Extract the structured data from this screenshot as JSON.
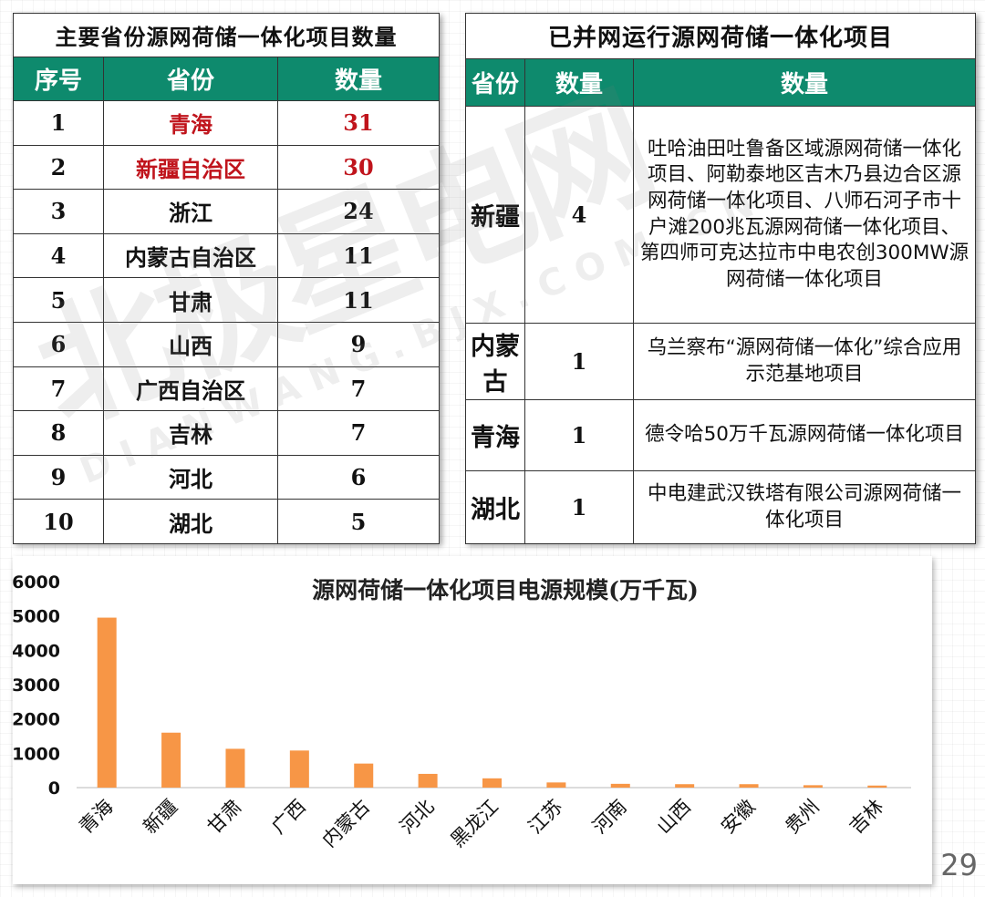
{
  "table1": {
    "title": "主要省份源网荷储一体化项目数量",
    "headers": [
      "序号",
      "省份",
      "数量"
    ],
    "rows": [
      {
        "no": "1",
        "province": "青海",
        "count": "31",
        "highlight": true
      },
      {
        "no": "2",
        "province": "新疆自治区",
        "count": "30",
        "highlight": true
      },
      {
        "no": "3",
        "province": "浙江",
        "count": "24",
        "highlight": false
      },
      {
        "no": "4",
        "province": "内蒙古自治区",
        "count": "11",
        "highlight": false
      },
      {
        "no": "5",
        "province": "甘肃",
        "count": "11",
        "highlight": false
      },
      {
        "no": "6",
        "province": "山西",
        "count": "9",
        "highlight": false
      },
      {
        "no": "7",
        "province": "广西自治区",
        "count": "7",
        "highlight": false
      },
      {
        "no": "8",
        "province": "吉林",
        "count": "7",
        "highlight": false
      },
      {
        "no": "9",
        "province": "河北",
        "count": "6",
        "highlight": false
      },
      {
        "no": "10",
        "province": "湖北",
        "count": "5",
        "highlight": false
      }
    ]
  },
  "table2": {
    "title": "已并网运行源网荷储一体化项目",
    "headers": [
      "省份",
      "数量",
      "数量"
    ],
    "rows": [
      {
        "province": "新疆",
        "count": "4",
        "desc": "吐哈油田吐鲁备区域源网荷储一体化项目、阿勒泰地区吉木乃县边合区源网荷储一体化项目、八师石河子市十户滩200兆瓦源网荷储一体化项目、第四师可克达拉市中电农创300MW源网荷储一体化项目"
      },
      {
        "province": "内蒙古",
        "count": "1",
        "desc": "乌兰察布“源网荷储一体化”综合应用示范基地项目"
      },
      {
        "province": "青海",
        "count": "1",
        "desc": "德令哈50万千瓦源网荷储一体化项目"
      },
      {
        "province": "湖北",
        "count": "1",
        "desc": "中电建武汉铁塔有限公司源网荷储一体化项目"
      }
    ]
  },
  "chart_data": {
    "type": "bar",
    "title": "源网荷储一体化项目电源规模(万千瓦)",
    "categories": [
      "青海",
      "新疆",
      "甘肃",
      "广西",
      "内蒙古",
      "河北",
      "黑龙江",
      "江苏",
      "河南",
      "山西",
      "安徽",
      "贵州",
      "吉林"
    ],
    "values": [
      4950,
      1600,
      1130,
      1080,
      700,
      400,
      270,
      150,
      110,
      100,
      100,
      70,
      60
    ],
    "ylim": [
      0,
      6000
    ],
    "yticks": [
      "6000",
      "5000",
      "4000",
      "3000",
      "2000",
      "1000",
      "0"
    ],
    "grid": false,
    "bar_color": "#f79646"
  },
  "watermark": {
    "text": "北极星电网",
    "sub": "DIANWANG.BJX.COM.CN"
  },
  "page_number": "29",
  "colors": {
    "header_bg": "#0e8a6d",
    "title_red": "#e8000e",
    "highlight_red": "#c0141c"
  }
}
